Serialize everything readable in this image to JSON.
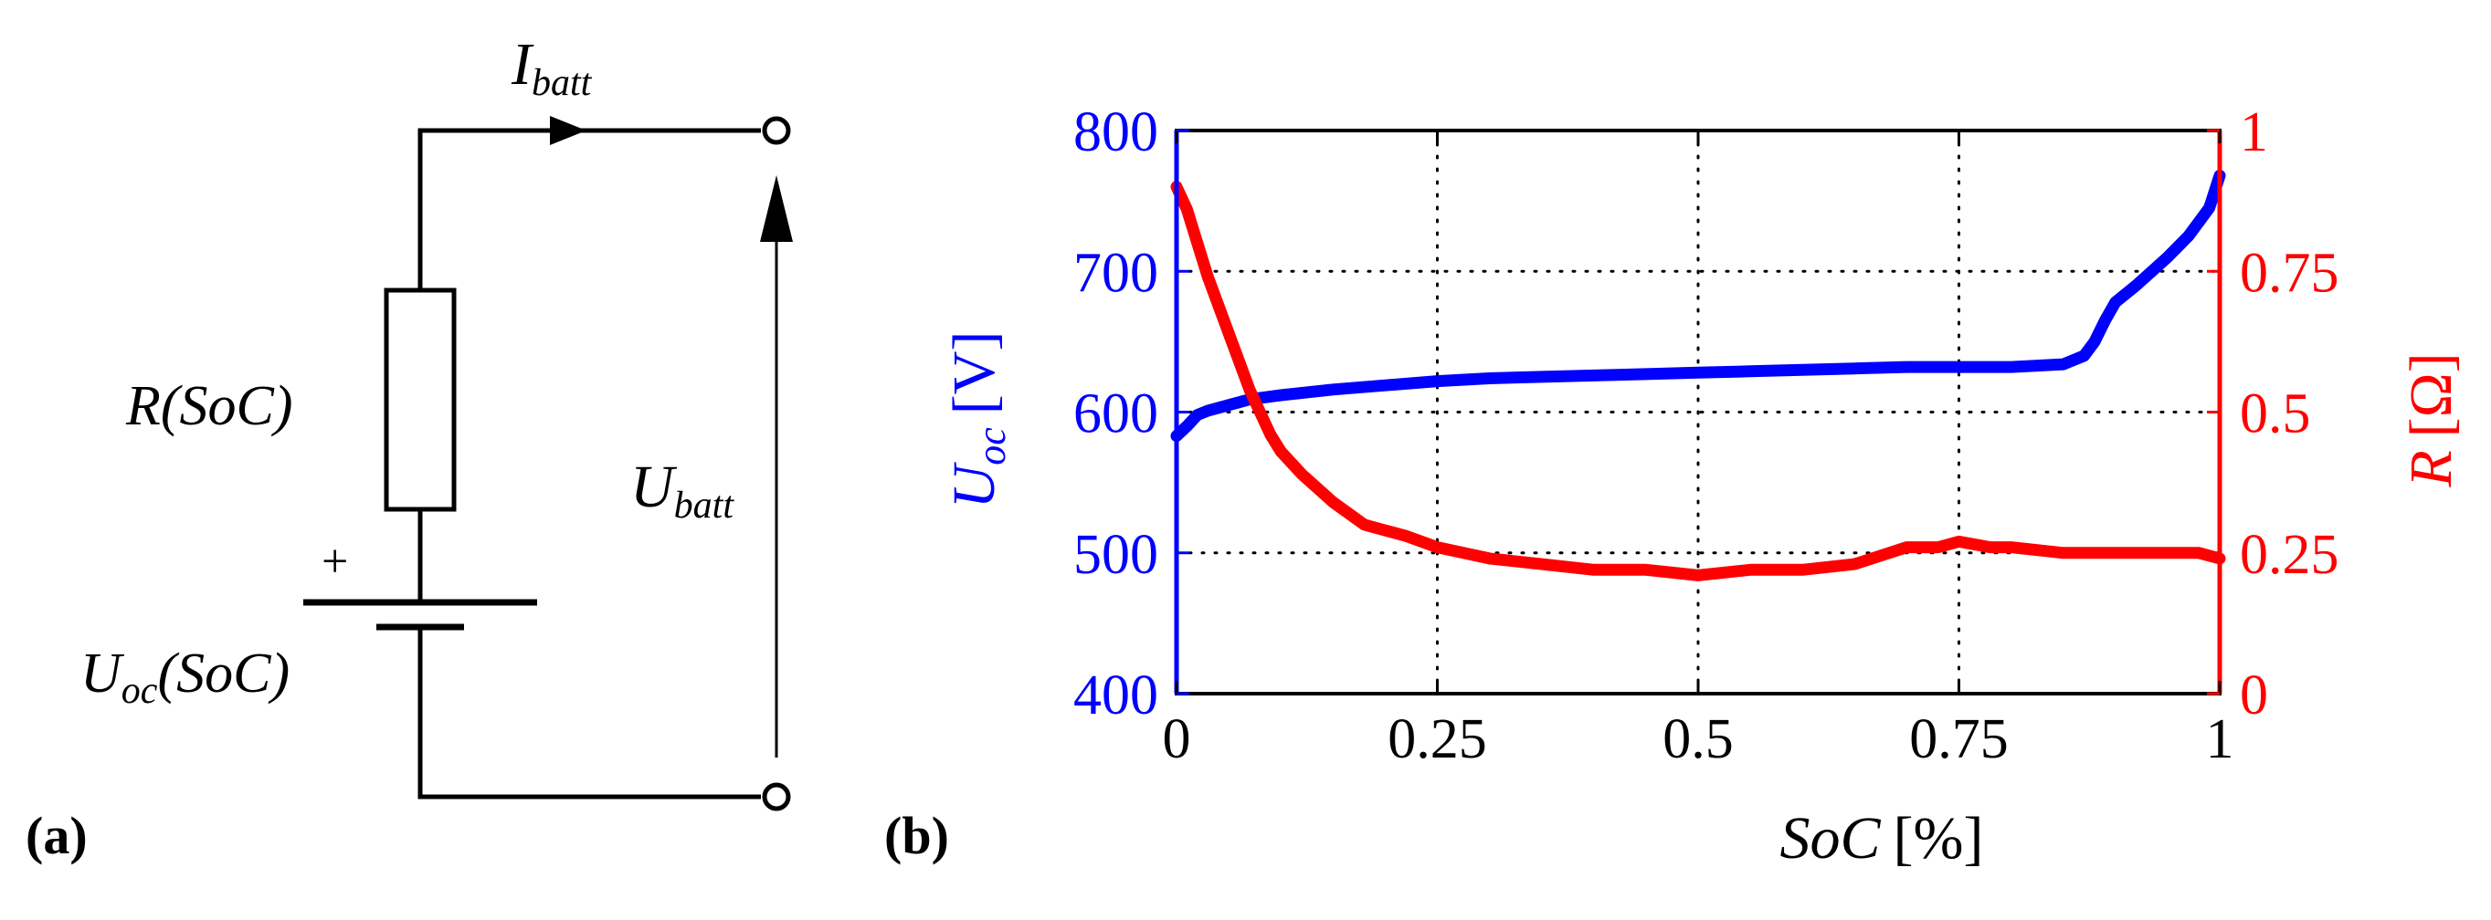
{
  "colors": {
    "blue": "#0000ff",
    "red": "#ff0000",
    "black": "#000000"
  },
  "panel_a": {
    "tag": "(a)",
    "current": {
      "main": "I",
      "sub": "batt"
    },
    "resistor": {
      "main": "R",
      "arg": "(SoC)"
    },
    "source": {
      "main": "U",
      "sub": "oc",
      "arg": "(SoC)"
    },
    "plus_sign": "+",
    "voltage": {
      "main": "U",
      "sub": "batt"
    }
  },
  "panel_b": {
    "tag": "(b)"
  },
  "chart_data": {
    "type": "line",
    "title": "",
    "xlabel": {
      "main": "SoC",
      "unit": "[%]"
    },
    "ylabel_left": {
      "main": "U",
      "sub": "oc",
      "unit": "[V]"
    },
    "ylabel_right": {
      "main": "R",
      "unit": "[Ω]"
    },
    "xlim": [
      0,
      1
    ],
    "ylim_left": [
      400,
      800
    ],
    "ylim_right": [
      0,
      1
    ],
    "x_ticks": [
      "0",
      "0.25",
      "0.5",
      "0.75",
      "1"
    ],
    "x_tick_values": [
      0,
      0.25,
      0.5,
      0.75,
      1
    ],
    "y_left_ticks": [
      "400",
      "500",
      "600",
      "700",
      "800"
    ],
    "y_left_tick_values": [
      400,
      500,
      600,
      700,
      800
    ],
    "y_right_ticks": [
      "0",
      "0.25",
      "0.5",
      "0.75",
      "1"
    ],
    "y_right_tick_values": [
      0,
      0.25,
      0.5,
      0.75,
      1
    ],
    "grid": true,
    "series": [
      {
        "name": "Uoc",
        "axis": "left",
        "color": "#0000ff",
        "x": [
          0,
          0.01,
          0.02,
          0.03,
          0.05,
          0.07,
          0.1,
          0.15,
          0.2,
          0.25,
          0.3,
          0.35,
          0.4,
          0.45,
          0.5,
          0.55,
          0.6,
          0.65,
          0.7,
          0.75,
          0.8,
          0.85,
          0.87,
          0.88,
          0.89,
          0.9,
          0.92,
          0.95,
          0.97,
          0.99,
          1.0
        ],
        "values": [
          583,
          590,
          598,
          601,
          605,
          609,
          612,
          616,
          619,
          622,
          624,
          625,
          626,
          627,
          628,
          629,
          630,
          631,
          632,
          632,
          632,
          634,
          640,
          650,
          665,
          678,
          690,
          710,
          725,
          745,
          768
        ]
      },
      {
        "name": "R",
        "axis": "right",
        "color": "#ff0000",
        "x": [
          0,
          0.01,
          0.02,
          0.03,
          0.05,
          0.07,
          0.09,
          0.1,
          0.12,
          0.15,
          0.18,
          0.2,
          0.22,
          0.25,
          0.3,
          0.35,
          0.4,
          0.45,
          0.5,
          0.55,
          0.6,
          0.65,
          0.7,
          0.73,
          0.75,
          0.78,
          0.8,
          0.85,
          0.9,
          0.95,
          0.98,
          1.0
        ],
        "values": [
          0.9,
          0.86,
          0.8,
          0.74,
          0.64,
          0.54,
          0.46,
          0.43,
          0.39,
          0.34,
          0.3,
          0.29,
          0.28,
          0.26,
          0.24,
          0.23,
          0.22,
          0.22,
          0.21,
          0.22,
          0.22,
          0.23,
          0.26,
          0.26,
          0.27,
          0.26,
          0.26,
          0.25,
          0.25,
          0.25,
          0.25,
          0.24
        ]
      }
    ]
  }
}
